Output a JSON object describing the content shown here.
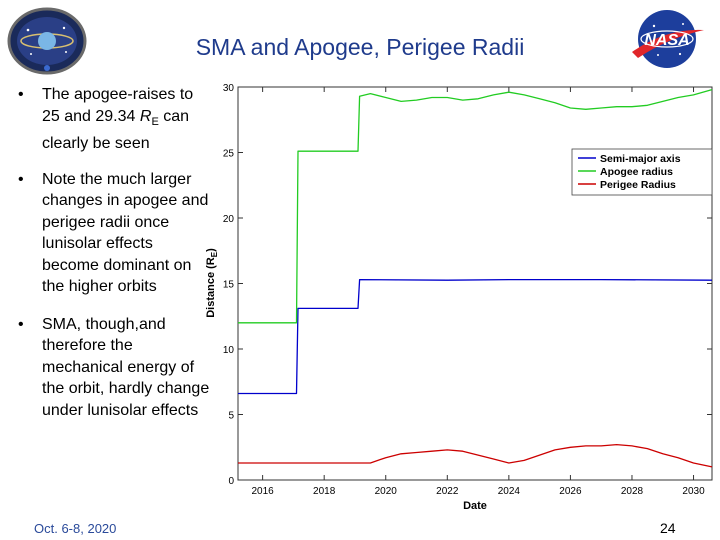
{
  "slide": {
    "title": "SMA and Apogee, Perigee Radii",
    "footer_date": "Oct. 6-8, 2020",
    "page_number": "24"
  },
  "bullets": [
    {
      "before": "The apogee-raises to 25 and 29.34 ",
      "r": "R",
      "sub": "E",
      "after": " can clearly be seen"
    },
    {
      "text": "Note the much larger changes in apogee and perigee radii once lunisolar effects become dominant on the higher orbits"
    },
    {
      "text": "SMA, though,and therefore the mechanical energy of the orbit, hardly change under lunisolar effects"
    }
  ],
  "logos": {
    "right_text": "NASA"
  },
  "colors": {
    "title": "#1f3b8c",
    "sma": "#0000cc",
    "apogee": "#22cc22",
    "perigee": "#cc0000",
    "footer": "#2a4a9a"
  },
  "chart_data": {
    "type": "line",
    "xlabel": "Date",
    "ylabel_main": "Distance (R",
    "ylabel_sub": "E",
    "ylabel_end": ")",
    "xlim": [
      2015.2,
      2030.6
    ],
    "ylim": [
      0,
      30
    ],
    "x_ticks": [
      "2016",
      "2018",
      "2020",
      "2022",
      "2024",
      "2026",
      "2028",
      "2030"
    ],
    "y_ticks": [
      "0",
      "5",
      "10",
      "15",
      "20",
      "25",
      "30"
    ],
    "legend_position": "top-right",
    "grid": false,
    "series": [
      {
        "name": "Semi-major axis",
        "color": "#0000cc",
        "points": [
          [
            2015.2,
            6.6
          ],
          [
            2017.1,
            6.6
          ],
          [
            2017.15,
            13.1
          ],
          [
            2019.1,
            13.1
          ],
          [
            2019.15,
            15.3
          ],
          [
            2022,
            15.25
          ],
          [
            2024,
            15.3
          ],
          [
            2027,
            15.3
          ],
          [
            2030.6,
            15.25
          ]
        ]
      },
      {
        "name": "Apogee radius",
        "color": "#22cc22",
        "points": [
          [
            2015.2,
            12.0
          ],
          [
            2017.1,
            12.0
          ],
          [
            2017.15,
            25.1
          ],
          [
            2019.1,
            25.1
          ],
          [
            2019.15,
            29.3
          ],
          [
            2019.5,
            29.5
          ],
          [
            2020.0,
            29.2
          ],
          [
            2020.5,
            28.9
          ],
          [
            2021.0,
            29.0
          ],
          [
            2021.5,
            29.2
          ],
          [
            2022.0,
            29.2
          ],
          [
            2022.5,
            29.0
          ],
          [
            2023.0,
            29.1
          ],
          [
            2023.5,
            29.4
          ],
          [
            2024.0,
            29.6
          ],
          [
            2024.5,
            29.4
          ],
          [
            2025.0,
            29.1
          ],
          [
            2025.5,
            28.8
          ],
          [
            2026.0,
            28.4
          ],
          [
            2026.5,
            28.3
          ],
          [
            2027.0,
            28.4
          ],
          [
            2027.5,
            28.5
          ],
          [
            2028.0,
            28.5
          ],
          [
            2028.5,
            28.6
          ],
          [
            2029.0,
            28.9
          ],
          [
            2029.5,
            29.2
          ],
          [
            2030.0,
            29.4
          ],
          [
            2030.6,
            29.8
          ]
        ]
      },
      {
        "name": "Perigee Radius",
        "color": "#cc0000",
        "points": [
          [
            2015.2,
            1.3
          ],
          [
            2017.1,
            1.3
          ],
          [
            2019.1,
            1.3
          ],
          [
            2019.15,
            1.3
          ],
          [
            2019.5,
            1.3
          ],
          [
            2020.0,
            1.7
          ],
          [
            2020.5,
            2.0
          ],
          [
            2021.0,
            2.1
          ],
          [
            2021.5,
            2.2
          ],
          [
            2022.0,
            2.3
          ],
          [
            2022.5,
            2.2
          ],
          [
            2023.0,
            1.9
          ],
          [
            2023.5,
            1.6
          ],
          [
            2024.0,
            1.3
          ],
          [
            2024.5,
            1.5
          ],
          [
            2025.0,
            1.9
          ],
          [
            2025.5,
            2.3
          ],
          [
            2026.0,
            2.5
          ],
          [
            2026.5,
            2.6
          ],
          [
            2027.0,
            2.6
          ],
          [
            2027.5,
            2.7
          ],
          [
            2028.0,
            2.6
          ],
          [
            2028.5,
            2.4
          ],
          [
            2029.0,
            2.0
          ],
          [
            2029.5,
            1.7
          ],
          [
            2030.0,
            1.3
          ],
          [
            2030.6,
            1.0
          ]
        ]
      }
    ]
  }
}
